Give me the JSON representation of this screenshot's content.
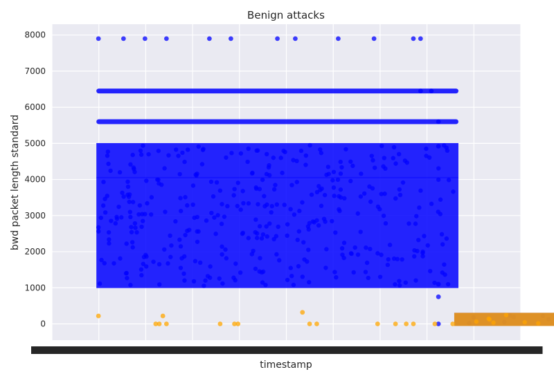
{
  "chart_data": {
    "type": "scatter",
    "title": "Benign attacks",
    "xlabel": "timestamp",
    "ylabel": "bwd packet length standard",
    "ylim": [
      -450,
      8300
    ],
    "yticks": [
      0,
      1000,
      2000,
      3000,
      4000,
      5000,
      6000,
      7000,
      8000
    ],
    "xlim": [
      -0.13,
      1.18
    ],
    "x_tick_labels_overlapping": true,
    "grid": true,
    "legend": "none",
    "colors": {
      "blue": "#0000ff",
      "orange": "#ffa500",
      "background": "#eaeaf2"
    },
    "series": [
      {
        "color": "blue",
        "x": [
          0.0,
          0.07,
          0.13,
          0.19,
          0.31,
          0.37,
          0.5,
          0.55,
          0.67,
          0.77,
          0.88,
          0.9,
          0.9,
          0.93,
          0.95,
          0.95,
          0.95,
          0.95,
          0.95
        ],
        "y": [
          7900,
          7900,
          7900,
          7900,
          7900,
          7900,
          7900,
          7900,
          7900,
          7900,
          7900,
          7900,
          6450,
          6450,
          5600,
          4920,
          1100,
          750,
          0
        ],
        "dense_bands": [
          {
            "x": [
              0.0,
              1.0
            ],
            "y": [
              1050,
              4000
            ]
          },
          {
            "x": [
              0.0,
              1.0
            ],
            "y": [
              4100,
              4950
            ]
          },
          {
            "x": [
              0.0,
              1.0
            ],
            "y": [
              5600,
              5600
            ]
          },
          {
            "x": [
              0.0,
              1.0
            ],
            "y": [
              6450,
              6450
            ]
          },
          {
            "x": [
              1.0,
              1.35
            ],
            "y": [
              0,
              250
            ]
          }
        ]
      },
      {
        "color": "orange",
        "x": [
          0.0,
          0.16,
          0.17,
          0.18,
          0.19,
          0.34,
          0.38,
          0.39,
          0.57,
          0.59,
          0.61,
          0.78,
          0.83,
          0.86,
          0.88,
          0.94,
          0.99
        ],
        "y": [
          220,
          0,
          0,
          220,
          0,
          0,
          0,
          0,
          320,
          0,
          0,
          0,
          0,
          0,
          0,
          0,
          0
        ],
        "dense_bands": [
          {
            "x": [
              1.0,
              1.4
            ],
            "y": [
              0,
              250
            ]
          }
        ]
      }
    ]
  }
}
